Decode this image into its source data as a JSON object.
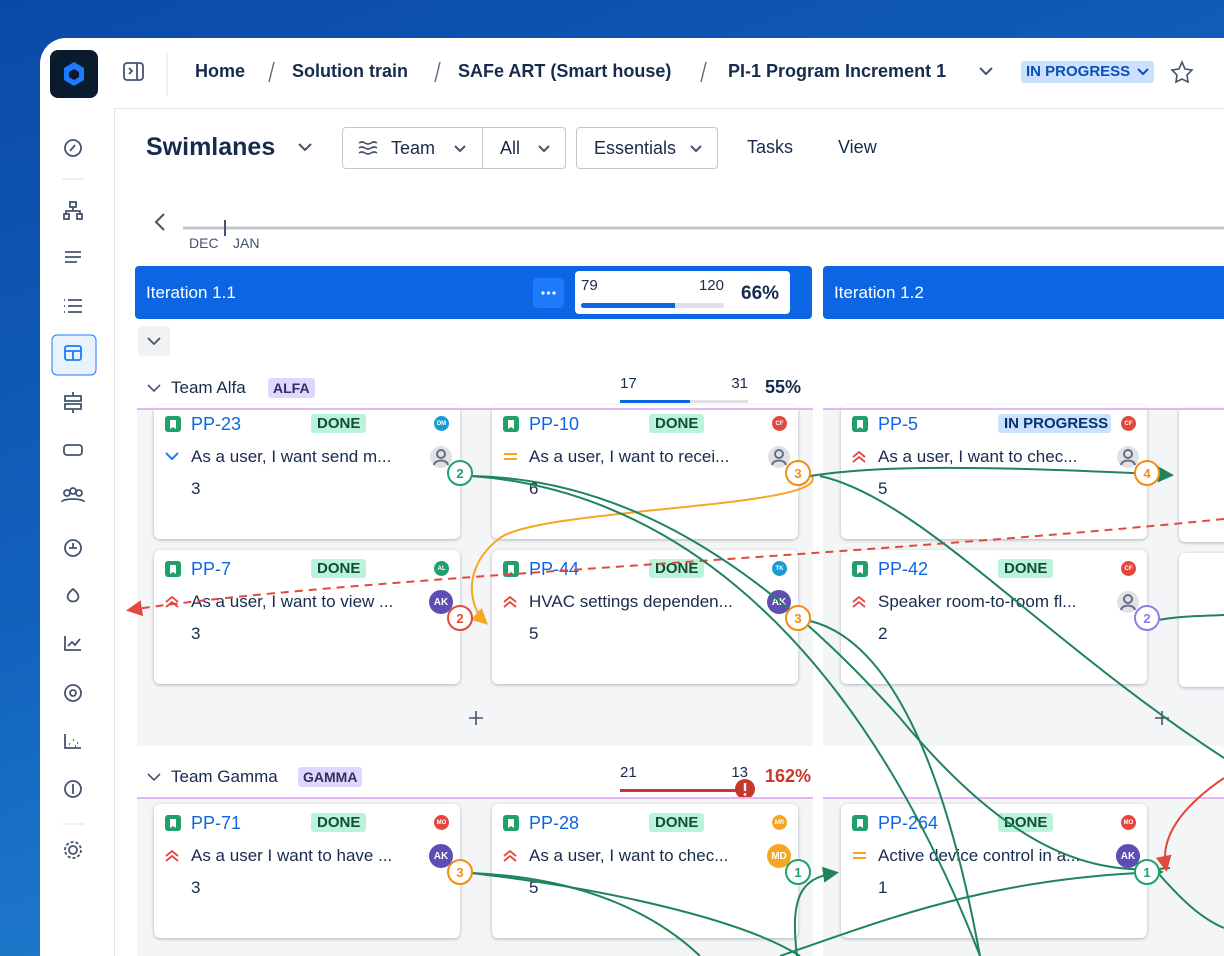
{
  "breadcrumb": [
    "Home",
    "Solution train",
    "SAFe ART (Smart house)",
    "PI-1 Program Increment 1"
  ],
  "status": "IN PROGRESS",
  "toolbar": {
    "view": "Swimlanes",
    "group": "Team",
    "filter": "All",
    "preset": "Essentials",
    "tasks": "Tasks",
    "view_menu": "View"
  },
  "timeline": [
    "DEC",
    "JAN"
  ],
  "iterations": [
    {
      "name": "Iteration 1.1",
      "done": 79,
      "total": 120,
      "percent": "66%"
    },
    {
      "name": "Iteration 1.2"
    }
  ],
  "teams": [
    {
      "name": "Team Alfa",
      "badge": "ALFA",
      "done": 17,
      "total": 31,
      "percent": "55%",
      "columns": [
        [
          {
            "id": "PP-23",
            "status": "DONE",
            "tone": "green",
            "reporter": "DM",
            "reporter_color": "#1d9bd1",
            "priority": "low",
            "title": "As a user, I want send m...",
            "points": 3,
            "assignee": null,
            "assignee_color": null,
            "dep": 2,
            "dep_color": "#22a06b"
          },
          {
            "id": "PP-7",
            "status": "DONE",
            "tone": "green",
            "reporter": "AL",
            "reporter_color": "#22a06b",
            "priority": "high",
            "title": "As a user, I want to view ...",
            "points": 3,
            "assignee": "AK",
            "assignee_color": "#5e4db2",
            "dep": 2,
            "dep_color": "#e2483d"
          }
        ],
        [
          {
            "id": "PP-10",
            "status": "DONE",
            "tone": "green",
            "reporter": "CF",
            "reporter_color": "#e2483d",
            "priority": "medium",
            "title": "As a user, I want to recei...",
            "points": 6,
            "assignee": null,
            "assignee_color": null,
            "dep": 3,
            "dep_color": "#f18d13"
          },
          {
            "id": "PP-44",
            "status": "DONE",
            "tone": "green",
            "reporter": "TK",
            "reporter_color": "#1d9bd1",
            "priority": "high",
            "title": "HVAC settings dependen...",
            "points": 5,
            "assignee": "AK",
            "assignee_color": "#5e4db2",
            "dep": 3,
            "dep_color": "#f18d13"
          }
        ],
        [
          {
            "id": "PP-5",
            "status": "IN PROGRESS",
            "tone": "blue",
            "reporter": "CF",
            "reporter_color": "#e2483d",
            "priority": "high",
            "title": "As a user, I want to chec...",
            "points": 5,
            "assignee": null,
            "assignee_color": null,
            "dep": 4,
            "dep_color": "#f18d13"
          },
          {
            "id": "PP-42",
            "status": "DONE",
            "tone": "green",
            "reporter": "CF",
            "reporter_color": "#e2483d",
            "priority": "high",
            "title": "Speaker room-to-room fl...",
            "points": 2,
            "assignee": null,
            "assignee_color": null,
            "dep": 2,
            "dep_color": "#8f7ee7"
          }
        ],
        []
      ]
    },
    {
      "name": "Team Gamma",
      "badge": "GAMMA",
      "done": 21,
      "total": 13,
      "percent": "162%",
      "columns": [
        [
          {
            "id": "PP-71",
            "status": "DONE",
            "tone": "green",
            "reporter": "MO",
            "reporter_color": "#e2483d",
            "priority": "high",
            "title": "As a user I want to have ...",
            "points": 3,
            "assignee": "AK",
            "assignee_color": "#5e4db2",
            "dep": 3,
            "dep_color": "#f18d13"
          }
        ],
        [
          {
            "id": "PP-28",
            "status": "DONE",
            "tone": "green",
            "reporter": "MR",
            "reporter_color": "#f5a623",
            "priority": "high",
            "title": "As a user, I want to chec...",
            "points": 5,
            "assignee": "MD",
            "assignee_color": "#f5a623",
            "dep": 1,
            "dep_color": "#22a06b"
          }
        ],
        [
          {
            "id": "PP-264",
            "status": "DONE",
            "tone": "green",
            "reporter": "MO",
            "reporter_color": "#e2483d",
            "priority": "medium",
            "title": "Active device control in a...",
            "points": 1,
            "assignee": "AK",
            "assignee_color": "#5e4db2",
            "dep": 1,
            "dep_color": "#22a06b"
          }
        ],
        []
      ]
    }
  ]
}
